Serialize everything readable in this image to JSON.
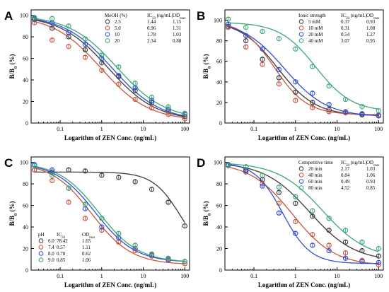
{
  "chart_data": [
    {
      "type": "line",
      "panel": "A",
      "xlabel": "Logarithm of ZEN Conc. (ng/mL)",
      "ylabel": "B/B0 (%)",
      "xscale": "log",
      "xlim": [
        0.02,
        130
      ],
      "ylim": [
        0,
        105
      ],
      "xticks": [
        "0.1",
        "1",
        "10",
        "100"
      ],
      "yticks": [
        "0",
        "20",
        "40",
        "60",
        "80",
        "100"
      ],
      "x": [
        0.024,
        0.064,
        0.16,
        0.4,
        1,
        2.56,
        6.4,
        16,
        40,
        100
      ],
      "legend": {
        "position": "top-right",
        "headers": [
          "MeOH (%)",
          "IC50 (ng/mL)",
          "ODmax"
        ],
        "rows": [
          [
            "2.5",
            "1.44",
            "1.15"
          ],
          [
            "5.0",
            "0.96",
            "1.31"
          ],
          [
            "10",
            "1.78",
            "1.03"
          ],
          [
            "20",
            "2.34",
            "0.88"
          ]
        ]
      },
      "series": [
        {
          "name": "2.5",
          "color": "#3a3a3a",
          "ic50": 1.44,
          "hill": 0.75,
          "bottom": 2,
          "top": 100,
          "values": [
            96,
            88,
            80,
            68,
            56,
            43,
            30,
            19,
            11,
            6
          ]
        },
        {
          "name": "5.0",
          "color": "#c8553d",
          "ic50": 0.96,
          "hill": 0.75,
          "bottom": 2,
          "top": 100,
          "values": [
            93,
            77,
            71,
            61,
            49,
            36,
            22,
            14,
            8,
            4
          ]
        },
        {
          "name": "10",
          "color": "#2f4fd8",
          "ic50": 1.78,
          "hill": 0.75,
          "bottom": 2,
          "top": 100,
          "values": [
            97,
            93,
            84,
            73,
            60,
            44,
            33,
            21,
            13,
            8
          ]
        },
        {
          "name": "20",
          "color": "#3aa878",
          "ic50": 2.34,
          "hill": 0.75,
          "bottom": 3,
          "top": 100,
          "values": [
            98,
            97,
            90,
            78,
            63,
            52,
            37,
            24,
            15,
            9
          ]
        }
      ]
    },
    {
      "type": "line",
      "panel": "B",
      "xlabel": "Logarithm of ZEN Conc. (ng/mL)",
      "ylabel": "B/B0 (%)",
      "xscale": "log",
      "xlim": [
        0.02,
        130
      ],
      "ylim": [
        0,
        110
      ],
      "xticks": [
        "0.1",
        "1",
        "10",
        "100"
      ],
      "yticks": [
        "0",
        "20",
        "40",
        "60",
        "80",
        "100"
      ],
      "x": [
        0.024,
        0.064,
        0.16,
        0.4,
        1,
        2.56,
        6.4,
        16,
        40,
        100
      ],
      "legend": {
        "position": "top-right",
        "headers": [
          "Ionic strength",
          "IC50 (ng/mL)",
          "ODmax"
        ],
        "rows": [
          [
            "5 mM",
            "0.37",
            "0.93"
          ],
          [
            "10 mM",
            "0.31",
            "1.08"
          ],
          [
            "20 mM",
            "0.54",
            "1.27"
          ],
          [
            "40 mM",
            "3.07",
            "0.95"
          ]
        ]
      },
      "series": [
        {
          "name": "5 mM",
          "color": "#3a3a3a",
          "ic50": 0.37,
          "hill": 0.95,
          "bottom": 7,
          "top": 100,
          "values": [
            94,
            80,
            62,
            44,
            30,
            20,
            13,
            10,
            8,
            7
          ]
        },
        {
          "name": "10 mM",
          "color": "#c8553d",
          "ic50": 0.31,
          "hill": 1.1,
          "bottom": 8,
          "top": 100,
          "values": [
            93,
            74,
            57,
            38,
            22,
            15,
            11,
            10,
            9,
            8
          ]
        },
        {
          "name": "20 mM",
          "color": "#2f4fd8",
          "ic50": 0.54,
          "hill": 0.85,
          "bottom": 6,
          "top": 100,
          "values": [
            96,
            85,
            72,
            52,
            40,
            29,
            18,
            11,
            9,
            7
          ]
        },
        {
          "name": "40 mM",
          "color": "#3aa878",
          "ic50": 3.07,
          "hill": 1.0,
          "bottom": 11,
          "top": 98,
          "values": [
            101,
            93,
            89,
            82,
            72,
            55,
            36,
            23,
            16,
            12
          ]
        }
      ]
    },
    {
      "type": "line",
      "panel": "C",
      "xlabel": "Logarithm of ZEN Conc. (ng/mL)",
      "ylabel": "B/B0 (%)",
      "xscale": "log",
      "xlim": [
        0.02,
        130
      ],
      "ylim": [
        0,
        105
      ],
      "xticks": [
        "0.1",
        "1",
        "10",
        "100"
      ],
      "yticks": [
        "0",
        "20",
        "40",
        "60",
        "80",
        "100"
      ],
      "x": [
        0.024,
        0.064,
        0.16,
        0.4,
        1,
        2.56,
        6.4,
        16,
        40,
        100
      ],
      "legend": {
        "position": "bottom-left",
        "headers": [
          "pH",
          "IC50",
          "ODmax"
        ],
        "rows": [
          [
            "6.0",
            "78.42",
            "1.65"
          ],
          [
            "7.4",
            "0.57",
            "1.11"
          ],
          [
            "8.0",
            "0.70",
            "0.62"
          ],
          [
            "9.0",
            "0.85",
            "1.06"
          ]
        ]
      },
      "series": [
        {
          "name": "6.0",
          "color": "#3a3a3a",
          "ic50": 78.42,
          "hill": 1.3,
          "bottom": 10,
          "top": 91,
          "values": [
            93,
            91,
            93,
            92,
            88,
            86,
            82,
            75,
            63,
            41
          ]
        },
        {
          "name": "7.4",
          "color": "#c8553d",
          "ic50": 0.57,
          "hill": 0.9,
          "bottom": 5,
          "top": 100,
          "values": [
            93,
            83,
            63,
            48,
            37,
            26,
            18,
            13,
            9,
            6
          ]
        },
        {
          "name": "8.0",
          "color": "#2f4fd8",
          "ic50": 0.7,
          "hill": 0.9,
          "bottom": 7,
          "top": 100,
          "values": [
            98,
            93,
            76,
            57,
            40,
            30,
            20,
            14,
            10,
            8
          ]
        },
        {
          "name": "9.0",
          "color": "#3aa878",
          "ic50": 0.85,
          "hill": 0.9,
          "bottom": 7,
          "top": 100,
          "values": [
            97,
            88,
            76,
            61,
            48,
            34,
            23,
            15,
            11,
            8
          ]
        }
      ]
    },
    {
      "type": "line",
      "panel": "D",
      "xlabel": "Logarithm of ZEN Conc. (ng/mL)",
      "ylabel": "B/B0 (%)",
      "xscale": "log",
      "xlim": [
        0.02,
        130
      ],
      "ylim": [
        0,
        105
      ],
      "xticks": [
        "0.1",
        "1",
        "10",
        "100"
      ],
      "yticks": [
        "0",
        "20",
        "40",
        "60",
        "80",
        "100"
      ],
      "x": [
        0.024,
        0.064,
        0.16,
        0.4,
        1,
        2.56,
        6.4,
        16,
        40,
        100
      ],
      "legend": {
        "position": "top-right",
        "headers": [
          "Competitive time",
          "IC50 (ng/mL)",
          "ODmax"
        ],
        "rows": [
          [
            "20 min",
            "2.17",
            "1.03"
          ],
          [
            "40 min",
            "0.84",
            "1.06"
          ],
          [
            "60 min",
            "0.49",
            "0.93"
          ],
          [
            "80 min",
            "4.52",
            "0.85"
          ]
        ]
      },
      "series": [
        {
          "name": "20 min",
          "color": "#3a3a3a",
          "ic50": 2.17,
          "hill": 0.8,
          "bottom": 8,
          "top": 100,
          "values": [
            97,
            93,
            84,
            72,
            62,
            50,
            37,
            26,
            18,
            13
          ]
        },
        {
          "name": "40 min",
          "color": "#c8553d",
          "ic50": 0.84,
          "hill": 0.85,
          "bottom": 4,
          "top": 100,
          "values": [
            97,
            91,
            80,
            62,
            45,
            33,
            23,
            16,
            9,
            5
          ]
        },
        {
          "name": "60 min",
          "color": "#2f4fd8",
          "ic50": 0.49,
          "hill": 1.3,
          "bottom": 6,
          "top": 100,
          "values": [
            98,
            92,
            78,
            53,
            34,
            23,
            18,
            11,
            8,
            7
          ]
        },
        {
          "name": "80 min",
          "color": "#3aa878",
          "ic50": 4.52,
          "hill": 0.8,
          "bottom": 10,
          "top": 100,
          "values": [
            97,
            96,
            88,
            77,
            68,
            55,
            48,
            37,
            26,
            20
          ]
        }
      ]
    }
  ]
}
